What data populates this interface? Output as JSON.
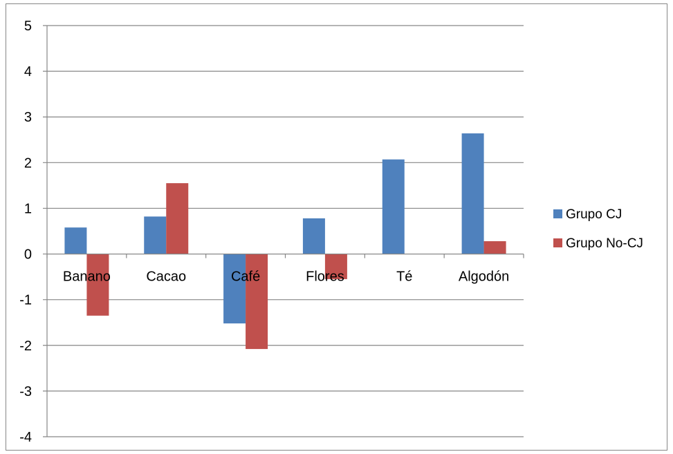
{
  "chart_data": {
    "type": "bar",
    "categories": [
      "Banano",
      "Cacao",
      "Café",
      "Flores",
      "Té",
      "Algodón"
    ],
    "series": [
      {
        "name": "Grupo CJ",
        "values": [
          0.58,
          0.82,
          -1.52,
          0.78,
          2.07,
          2.64
        ],
        "color": "#4F81BD"
      },
      {
        "name": "Grupo No-CJ",
        "values": [
          -1.35,
          1.55,
          -2.08,
          -0.55,
          0,
          0.28
        ],
        "color": "#C0504D"
      }
    ],
    "ylim": [
      -4,
      5
    ],
    "yticks": [
      -4,
      -3,
      -2,
      -1,
      0,
      1,
      2,
      3,
      4,
      5
    ],
    "grid": true,
    "legend_position": "right"
  }
}
